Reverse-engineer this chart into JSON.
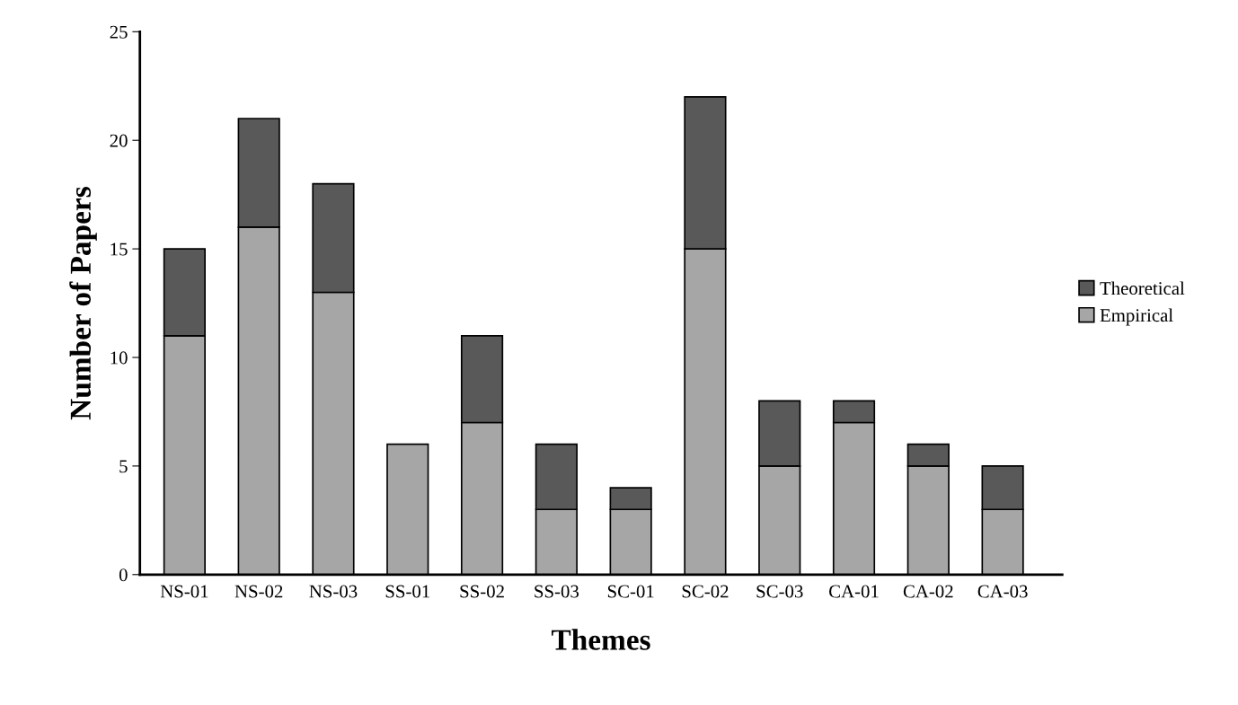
{
  "chart_data": {
    "type": "bar",
    "stacked": true,
    "xlabel": "Themes",
    "ylabel": "Number of Papers",
    "categories": [
      "NS-01",
      "NS-02",
      "NS-03",
      "SS-01",
      "SS-02",
      "SS-03",
      "SC-01",
      "SC-02",
      "SC-03",
      "CA-01",
      "CA-02",
      "CA-03"
    ],
    "series": [
      {
        "name": "Empirical",
        "color": "#a6a6a6",
        "values": [
          11,
          16,
          13,
          6,
          7,
          3,
          3,
          15,
          5,
          7,
          5,
          3
        ]
      },
      {
        "name": "Theoretical",
        "color": "#595959",
        "values": [
          4,
          5,
          5,
          null,
          4,
          3,
          1,
          7,
          3,
          1,
          1,
          2
        ]
      }
    ],
    "ylim": [
      0,
      25
    ],
    "yticks": [
      0,
      5,
      10,
      15,
      20,
      25
    ],
    "grid": false,
    "legend": "right"
  }
}
